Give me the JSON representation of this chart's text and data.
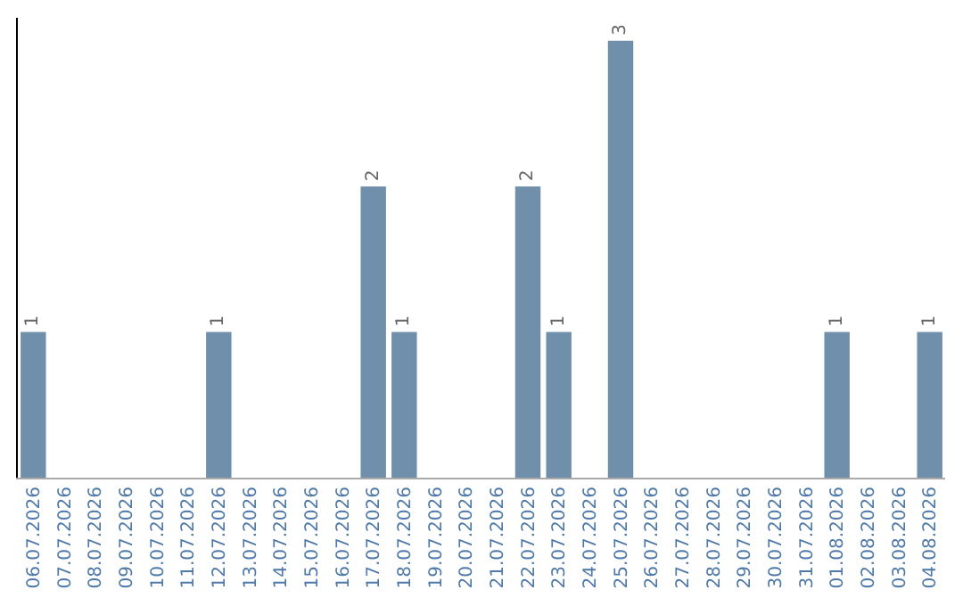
{
  "chart_data": {
    "type": "bar",
    "categories": [
      "06.07.2026",
      "07.07.2026",
      "08.07.2026",
      "09.07.2026",
      "10.07.2026",
      "11.07.2026",
      "12.07.2026",
      "13.07.2026",
      "14.07.2026",
      "15.07.2026",
      "16.07.2026",
      "17.07.2026",
      "18.07.2026",
      "19.07.2026",
      "20.07.2026",
      "21.07.2026",
      "22.07.2026",
      "23.07.2026",
      "24.07.2026",
      "25.07.2026",
      "26.07.2026",
      "27.07.2026",
      "28.07.2026",
      "29.07.2026",
      "30.07.2026",
      "31.07.2026",
      "01.08.2026",
      "02.08.2026",
      "03.08.2026",
      "04.08.2026"
    ],
    "values": [
      1,
      0,
      0,
      0,
      0,
      0,
      1,
      0,
      0,
      0,
      0,
      2,
      1,
      0,
      0,
      0,
      2,
      1,
      0,
      3,
      0,
      0,
      0,
      0,
      0,
      0,
      1,
      0,
      0,
      1
    ],
    "value_labels": [
      "1",
      null,
      null,
      null,
      null,
      null,
      "1",
      null,
      null,
      null,
      null,
      "2",
      "1",
      null,
      null,
      null,
      "2",
      "1",
      null,
      "3",
      null,
      null,
      null,
      null,
      null,
      null,
      "1",
      null,
      null,
      "1"
    ],
    "color": "#6f8fab"
  }
}
